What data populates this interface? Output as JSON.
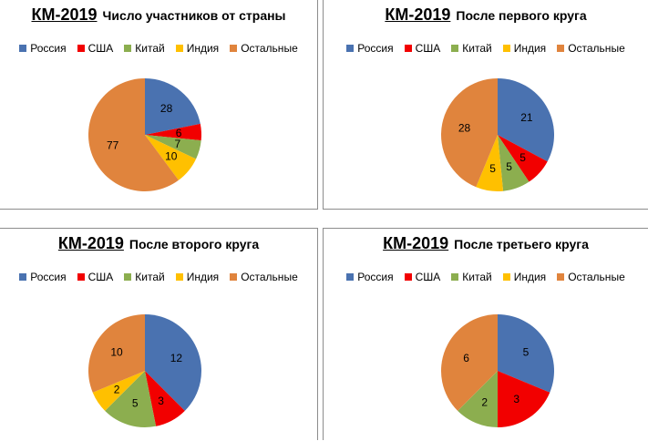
{
  "legend_colors": [
    "#4a72b0",
    "#f20000",
    "#8cae4f",
    "#ffc000",
    "#e0843d"
  ],
  "chart_data": [
    {
      "type": "pie",
      "title_main": "КМ-2019",
      "title_sub": "Число участников от страны",
      "categories": [
        "Россия",
        "США",
        "Китай",
        "Индия",
        "Остальные"
      ],
      "values": [
        28,
        6,
        7,
        10,
        77
      ],
      "labels": [
        "28",
        "6",
        "7",
        "10",
        "77"
      ],
      "legend": "top"
    },
    {
      "type": "pie",
      "title_main": "КМ-2019",
      "title_sub": "После первого круга",
      "categories": [
        "Россия",
        "США",
        "Китай",
        "Индия",
        "Остальные"
      ],
      "values": [
        21,
        5,
        5,
        5,
        28
      ],
      "labels": [
        "21",
        "5",
        "5",
        "5",
        "28"
      ],
      "legend": "top"
    },
    {
      "type": "pie",
      "title_main": "КМ-2019",
      "title_sub": "После второго круга",
      "categories": [
        "Россия",
        "США",
        "Китай",
        "Индия",
        "Остальные"
      ],
      "values": [
        12,
        3,
        5,
        2,
        10
      ],
      "labels": [
        "12",
        "3",
        "5",
        "2",
        "10"
      ],
      "legend": "top"
    },
    {
      "type": "pie",
      "title_main": "КМ-2019",
      "title_sub": "После третьего круга",
      "categories": [
        "Россия",
        "США",
        "Китай",
        "Индия",
        "Остальные"
      ],
      "values": [
        5,
        3,
        2,
        0,
        6
      ],
      "labels": [
        "5",
        "3",
        "2",
        "",
        "6"
      ],
      "legend": "top"
    }
  ]
}
